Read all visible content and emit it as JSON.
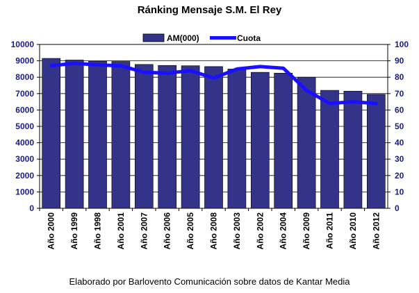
{
  "chart_data": {
    "type": "bar",
    "title": "Ránking Mensaje S.M. El Rey",
    "caption": "Elaborado por Barlovento Comunicación sobre datos de Kantar Media",
    "categories": [
      "Año 2000",
      "Año 1999",
      "Año 1998",
      "Año 2001",
      "Año 2007",
      "Año 2006",
      "Año 2005",
      "Año 2008",
      "Año 2003",
      "Año 2002",
      "Año 2004",
      "Año 2009",
      "Año 2011",
      "Año 2010",
      "Año 2012"
    ],
    "series": [
      {
        "name": "AM(000)",
        "kind": "bar",
        "axis": "left",
        "color": "#33338a",
        "values": [
          9150,
          9050,
          8980,
          8960,
          8780,
          8720,
          8700,
          8650,
          8500,
          8300,
          8250,
          8000,
          7200,
          7150,
          6950
        ]
      },
      {
        "name": "Cuota",
        "kind": "line",
        "axis": "right",
        "color": "#1a10ff",
        "values": [
          87,
          88.5,
          87.5,
          87,
          83,
          82.5,
          84,
          79.5,
          85,
          86.5,
          85.5,
          72,
          64,
          65,
          64
        ]
      }
    ],
    "ylim_left": [
      0,
      10000
    ],
    "yticks_left": [
      0,
      1000,
      2000,
      3000,
      4000,
      5000,
      6000,
      7000,
      8000,
      9000,
      10000
    ],
    "ylim_right": [
      0,
      100
    ],
    "yticks_right": [
      0,
      10,
      20,
      30,
      40,
      50,
      60,
      70,
      80,
      90,
      100
    ],
    "grid": true,
    "legend_position": "top-center"
  }
}
